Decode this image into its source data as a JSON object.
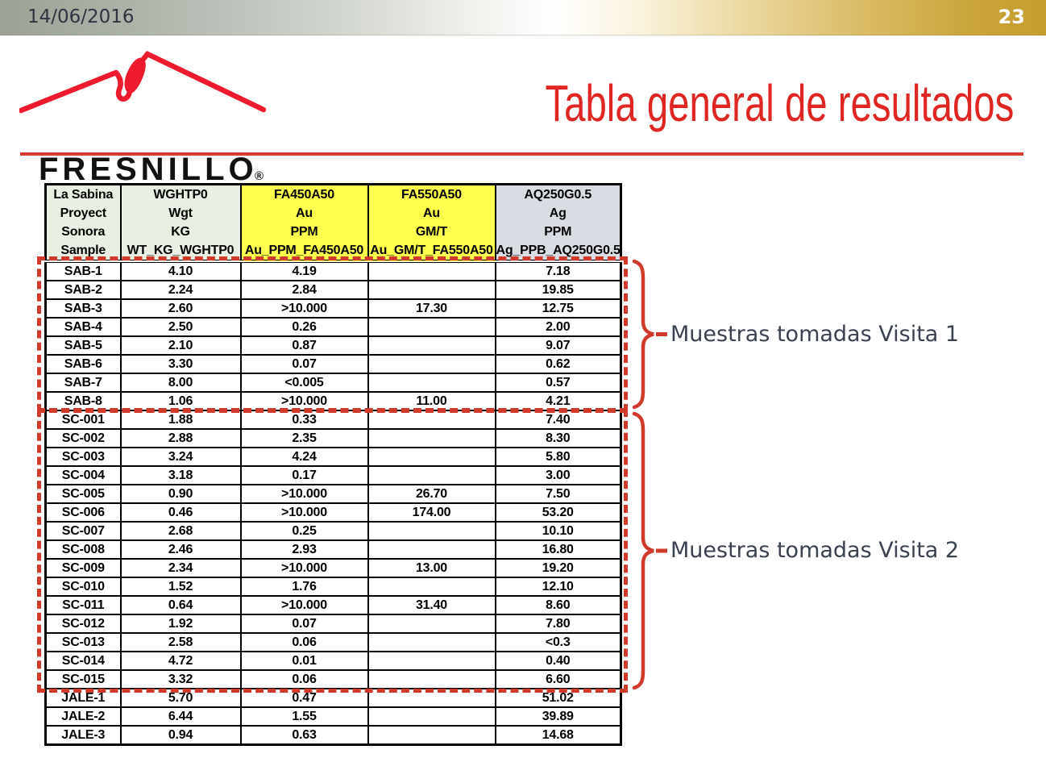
{
  "slide": {
    "date": "14/06/2016",
    "page_number": "23",
    "title": "Tabla general de resultados",
    "logo": {
      "wordmark": "FRESNILLO",
      "registered_mark": "®"
    }
  },
  "table": {
    "header_columns": [
      {
        "lines": [
          "La Sabina",
          "Proyect",
          "Sonora",
          "Sample"
        ],
        "bg": "#e9efe2"
      },
      {
        "lines": [
          "WGHTP0",
          "Wgt",
          "KG",
          "WT_KG_WGHTP0"
        ],
        "bg": "#e9efe2"
      },
      {
        "lines": [
          "FA450A50",
          "Au",
          "PPM",
          "Au_PPM_FA450A50"
        ],
        "bg": "#ffff4d"
      },
      {
        "lines": [
          "FA550A50",
          "Au",
          "GM/T",
          "Au_GM/T_FA550A50"
        ],
        "bg": "#ffff4d"
      },
      {
        "lines": [
          "AQ250G0.5",
          "Ag",
          "PPM",
          "Ag_PPB_AQ250G0.5"
        ],
        "bg": "#d9dce3"
      }
    ],
    "rows": [
      [
        "SAB-1",
        "4.10",
        "4.19",
        "",
        "7.18"
      ],
      [
        "SAB-2",
        "2.24",
        "2.84",
        "",
        "19.85"
      ],
      [
        "SAB-3",
        "2.60",
        ">10.000",
        "17.30",
        "12.75"
      ],
      [
        "SAB-4",
        "2.50",
        "0.26",
        "",
        "2.00"
      ],
      [
        "SAB-5",
        "2.10",
        "0.87",
        "",
        "9.07"
      ],
      [
        "SAB-6",
        "3.30",
        "0.07",
        "",
        "0.62"
      ],
      [
        "SAB-7",
        "8.00",
        "<0.005",
        "",
        "0.57"
      ],
      [
        "SAB-8",
        "1.06",
        ">10.000",
        "11.00",
        "4.21"
      ],
      [
        "SC-001",
        "1.88",
        "0.33",
        "",
        "7.40"
      ],
      [
        "SC-002",
        "2.88",
        "2.35",
        "",
        "8.30"
      ],
      [
        "SC-003",
        "3.24",
        "4.24",
        "",
        "5.80"
      ],
      [
        "SC-004",
        "3.18",
        "0.17",
        "",
        "3.00"
      ],
      [
        "SC-005",
        "0.90",
        ">10.000",
        "26.70",
        "7.50"
      ],
      [
        "SC-006",
        "0.46",
        ">10.000",
        "174.00",
        "53.20"
      ],
      [
        "SC-007",
        "2.68",
        "0.25",
        "",
        "10.10"
      ],
      [
        "SC-008",
        "2.46",
        "2.93",
        "",
        "16.80"
      ],
      [
        "SC-009",
        "2.34",
        ">10.000",
        "13.00",
        "19.20"
      ],
      [
        "SC-010",
        "1.52",
        "1.76",
        "",
        "12.10"
      ],
      [
        "SC-011",
        "0.64",
        ">10.000",
        "31.40",
        "8.60"
      ],
      [
        "SC-012",
        "1.92",
        "0.07",
        "",
        "7.80"
      ],
      [
        "SC-013",
        "2.58",
        "0.06",
        "",
        "<0.3"
      ],
      [
        "SC-014",
        "4.72",
        "0.01",
        "",
        "0.40"
      ],
      [
        "SC-015",
        "3.32",
        "0.06",
        "",
        "6.60"
      ],
      [
        "JALE-1",
        "5.70",
        "0.47",
        "",
        "51.02"
      ],
      [
        "JALE-2",
        "6.44",
        "1.55",
        "",
        "39.89"
      ],
      [
        "JALE-3",
        "0.94",
        "0.63",
        "",
        "14.68"
      ]
    ],
    "groups": {
      "visita1_rows": [
        0,
        7
      ],
      "visita2_rows": [
        8,
        22
      ]
    }
  },
  "annotations": [
    {
      "label": "Muestras tomadas Visita 1"
    },
    {
      "label": "Muestras tomadas Visita 2"
    }
  ],
  "colors": {
    "accent_red": "#e02622",
    "logo_red": "#ed1b2d",
    "marker_red": "#d03a2b",
    "rule_red": "#d6392e",
    "header_green": "#e9efe2",
    "header_yellow": "#ffff4d",
    "header_gray": "#d9dce3",
    "bar_gray": "#9ba295",
    "bar_gold": "#c59e30",
    "label_text": "#3a4150"
  }
}
